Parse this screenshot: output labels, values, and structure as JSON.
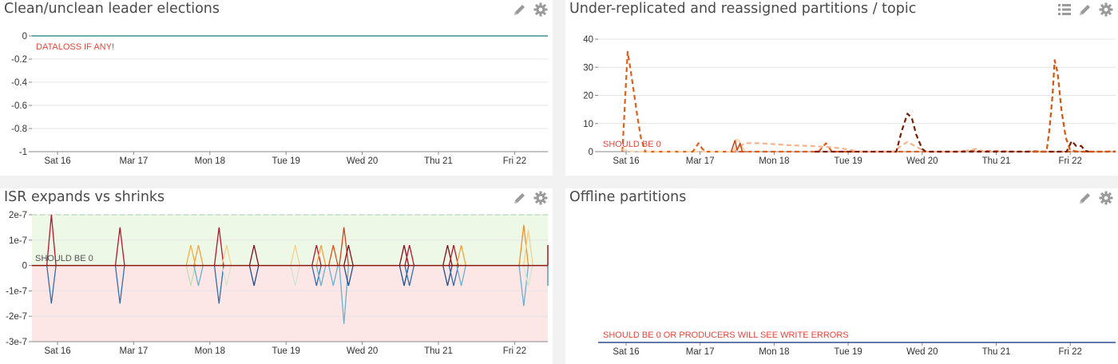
{
  "panels": [
    {
      "title": "Clean/unclean leader elections",
      "tools": [
        "edit-icon",
        "gear-icon"
      ],
      "chart_data": {
        "type": "line",
        "x_ticks": [
          "Sat 16",
          "Mar 17",
          "Mon 18",
          "Tue 19",
          "Wed 20",
          "Thu 21",
          "Fri 22"
        ],
        "y_ticks": [
          "0",
          "-0.2",
          "-0.4",
          "-0.6",
          "-0.8",
          "-1"
        ],
        "ylim": [
          -1,
          0
        ],
        "annotation": "DATALOSS IF ANY!",
        "series": [
          {
            "color": "#3f8f8f",
            "values": [
              0,
              0
            ]
          }
        ]
      }
    },
    {
      "title": "Under-replicated and reassigned partitions / topic",
      "tools": [
        "list-icon",
        "edit-icon",
        "gear-icon"
      ],
      "chart_data": {
        "type": "line",
        "x_ticks": [
          "Sat 16",
          "Mar 17",
          "Mon 18",
          "Tue 19",
          "Wed 20",
          "Thu 21",
          "Fri 22"
        ],
        "y_ticks": [
          "40",
          "30",
          "20",
          "10",
          "0"
        ],
        "ylim": [
          0,
          40
        ],
        "annotation": "SHOULD BE 0",
        "series": [
          {
            "color": "#e0601a",
            "dashed": true,
            "points": [
              [
                -0.05,
                0
              ],
              [
                0.02,
                35.5
              ],
              [
                0.05,
                31
              ],
              [
                0.1,
                22
              ],
              [
                0.15,
                13
              ],
              [
                0.2,
                5
              ],
              [
                0.26,
                0
              ],
              [
                0.9,
                0
              ],
              [
                0.98,
                3
              ],
              [
                1.03,
                1
              ],
              [
                1.08,
                0
              ],
              [
                2.6,
                0
              ],
              [
                2.7,
                3
              ],
              [
                2.78,
                0
              ],
              [
                4.48,
                0
              ],
              [
                4.6,
                0.3
              ],
              [
                5.4,
                0
              ],
              [
                5.52,
                0.2
              ],
              [
                5.6,
                0
              ],
              [
                6.5,
                0
              ],
              [
                6.58,
                0.2
              ],
              [
                6.7,
                0
              ],
              [
                7.2,
                0
              ]
            ]
          },
          {
            "color": "#f6b38d",
            "dashed": true,
            "points": [
              [
                1.45,
                0
              ],
              [
                1.5,
                1
              ],
              [
                1.6,
                3
              ],
              [
                1.8,
                3
              ],
              [
                1.98,
                2.7
              ],
              [
                2.2,
                2.3
              ],
              [
                2.5,
                2
              ],
              [
                2.8,
                1.5
              ],
              [
                3,
                0.8
              ],
              [
                3.15,
                0
              ],
              [
                3.6,
                0
              ],
              [
                3.8,
                3.5
              ],
              [
                3.9,
                2
              ],
              [
                4.05,
                0
              ],
              [
                4.48,
                0
              ],
              [
                4.6,
                0.3
              ],
              [
                4.73,
                1
              ],
              [
                4.83,
                0
              ],
              [
                5,
                0
              ]
            ]
          },
          {
            "color": "#fdd9b0",
            "dashed": true,
            "points": [
              [
                -0.05,
                0.8
              ],
              [
                0.05,
                0.3
              ],
              [
                0.1,
                0
              ],
              [
                1.45,
                0
              ],
              [
                1.5,
                5
              ],
              [
                1.58,
                1
              ],
              [
                1.65,
                0
              ]
            ]
          },
          {
            "color": "#7a1c06",
            "dashed": true,
            "points": [
              [
                2.55,
                0
              ],
              [
                3.65,
                0
              ],
              [
                3.72,
                7
              ],
              [
                3.8,
                13.5
              ],
              [
                3.86,
                12
              ],
              [
                3.92,
                6
              ],
              [
                4,
                1
              ],
              [
                4.05,
                0
              ],
              [
                5.5,
                0
              ],
              [
                5.95,
                0
              ],
              [
                6.02,
                3.8
              ],
              [
                6.08,
                2
              ],
              [
                6.15,
                2
              ],
              [
                6.2,
                0.3
              ],
              [
                6.25,
                0
              ]
            ]
          },
          {
            "color": "#d4550e",
            "dashed": true,
            "points": [
              [
                5.5,
                0
              ],
              [
                5.68,
                0
              ],
              [
                5.72,
                8
              ],
              [
                5.76,
                20
              ],
              [
                5.79,
                32.5
              ],
              [
                5.83,
                28
              ],
              [
                5.88,
                15
              ],
              [
                5.94,
                5
              ],
              [
                6,
                0.5
              ],
              [
                6.1,
                0
              ],
              [
                7.2,
                0
              ]
            ]
          },
          {
            "color": "#c9481a",
            "dashed": false,
            "points": [
              [
                1.42,
                0
              ],
              [
                1.47,
                4
              ],
              [
                1.5,
                0.5
              ],
              [
                1.54,
                3
              ],
              [
                1.57,
                0
              ],
              [
                1.62,
                0
              ]
            ]
          }
        ]
      }
    },
    {
      "title": "ISR expands vs shrinks",
      "tools": [
        "edit-icon",
        "gear-icon"
      ],
      "chart_data": {
        "type": "line",
        "x_ticks": [
          "Sat 16",
          "Mar 17",
          "Mon 18",
          "Tue 19",
          "Wed 20",
          "Thu 21",
          "Fri 22"
        ],
        "y_ticks": [
          "2e-7",
          "1e-7",
          "0",
          "-1e-7",
          "-2e-7",
          "-3e-7"
        ],
        "ylim": [
          -3e-07,
          2e-07
        ],
        "annotation": "SHOULD BE 0",
        "bands": [
          {
            "from": 0,
            "to": 2e-07,
            "color": "#eef8e6"
          },
          {
            "from": -3e-07,
            "to": 0,
            "color": "#fde6e6"
          }
        ],
        "threshold_line": {
          "value": 2e-07,
          "color": "#aaccaa"
        },
        "spike_width": 0.12,
        "spikes": [
          {
            "x": -0.08,
            "up": 2e-07,
            "up_color": "#b8142e",
            "down": -1.5e-07,
            "down_color": "#2f6fb0"
          },
          {
            "x": 0.82,
            "up": 1.5e-07,
            "up_color": "#b8142e",
            "down": -1.5e-07,
            "down_color": "#2f6fb0"
          },
          {
            "x": 1.75,
            "up": 8e-08,
            "up_color": "#f0b040",
            "down": -8e-08,
            "down_color": "#bfe0b0"
          },
          {
            "x": 1.85,
            "up": 8e-08,
            "up_color": "#f6a040",
            "down": -8e-08,
            "down_color": "#6ab0d0"
          },
          {
            "x": 2.12,
            "up": 1.5e-07,
            "up_color": "#b8142e",
            "down": -1.5e-07,
            "down_color": "#2f6fb0"
          },
          {
            "x": 2.22,
            "up": 8e-08,
            "up_color": "#f6d090",
            "down": -8e-08,
            "down_color": "#cfe7d0"
          },
          {
            "x": 2.58,
            "up": 8e-08,
            "up_color": "#8a0a1e",
            "down": -8e-08,
            "down_color": "#1f4f90"
          },
          {
            "x": 3.12,
            "up": 8e-08,
            "up_color": "#f6d090",
            "down": -8e-08,
            "down_color": "#cfe7d0"
          },
          {
            "x": 3.4,
            "up": 8e-08,
            "up_color": "#b8142e",
            "down": -8e-08,
            "down_color": "#2f6fb0"
          },
          {
            "x": 3.46,
            "up": 8e-08,
            "up_color": "#f6a040",
            "down": -8e-08,
            "down_color": "#6ab0d0"
          },
          {
            "x": 3.62,
            "up": 8e-08,
            "up_color": "#e0501a",
            "down": -8e-08,
            "down_color": "#6ab0d0"
          },
          {
            "x": 3.76,
            "up": 1.5e-07,
            "up_color": "#d4401a",
            "down": -2.3e-07,
            "down_color": "#6ab0d0"
          },
          {
            "x": 3.82,
            "up": 8e-08,
            "up_color": "#8a0a1e",
            "down": -8e-08,
            "down_color": "#1f4f90"
          },
          {
            "x": 4.55,
            "up": 8e-08,
            "up_color": "#8a0a1e",
            "down": -8e-08,
            "down_color": "#1f4f90"
          },
          {
            "x": 4.62,
            "up": 8e-08,
            "up_color": "#b8142e",
            "down": -8e-08,
            "down_color": "#2f6fb0"
          },
          {
            "x": 5.12,
            "up": 8e-08,
            "up_color": "#8a0a1e",
            "down": -8e-08,
            "down_color": "#1f4f90"
          },
          {
            "x": 5.2,
            "up": 8e-08,
            "up_color": "#b8142e",
            "down": -8e-08,
            "down_color": "#2f6fb0"
          },
          {
            "x": 5.3,
            "up": 8e-08,
            "up_color": "#f6a040",
            "down": -8e-08,
            "down_color": "#6ab0d0"
          },
          {
            "x": 6.12,
            "up": 1.6e-07,
            "up_color": "#f0902a",
            "down": -1.6e-07,
            "down_color": "#6ab0d0"
          },
          {
            "x": 6.18,
            "up": 1.4e-07,
            "up_color": "#f6d090",
            "down": -8e-08,
            "down_color": "#cfe7d0"
          },
          {
            "x": 6.58,
            "up": 8e-08,
            "up_color": "#f6d090",
            "down": -8e-08,
            "down_color": "#cfe7d0"
          },
          {
            "x": 6.63,
            "up": 8e-08,
            "up_color": "#f0b040",
            "down": -8e-08,
            "down_color": "#6ab0d0"
          },
          {
            "x": 6.78,
            "up": 8e-08,
            "up_color": "#d4401a",
            "down": -8e-08,
            "down_color": "#2f6fb0"
          },
          {
            "x": 6.92,
            "up": 8e-08,
            "up_color": "#b8142e",
            "down": -8e-08,
            "down_color": "#6ab0d0"
          }
        ],
        "series": [
          {
            "color": "#8a1a10",
            "values": [
              0,
              0
            ]
          }
        ]
      }
    },
    {
      "title": "Offline partitions",
      "tools": [
        "edit-icon",
        "gear-icon"
      ],
      "chart_data": {
        "type": "line",
        "x_ticks": [
          "Sat 16",
          "Mar 17",
          "Mon 18",
          "Tue 19",
          "Wed 20",
          "Thu 21",
          "Fri 22"
        ],
        "y_ticks": [],
        "ylim": [
          0,
          1
        ],
        "annotation": "SHOULD BE 0 OR PRODUCERS WILL SEE WRITE ERRORS",
        "series": [
          {
            "color": "#2f4f8f",
            "values": [
              0,
              0
            ]
          }
        ]
      }
    }
  ]
}
